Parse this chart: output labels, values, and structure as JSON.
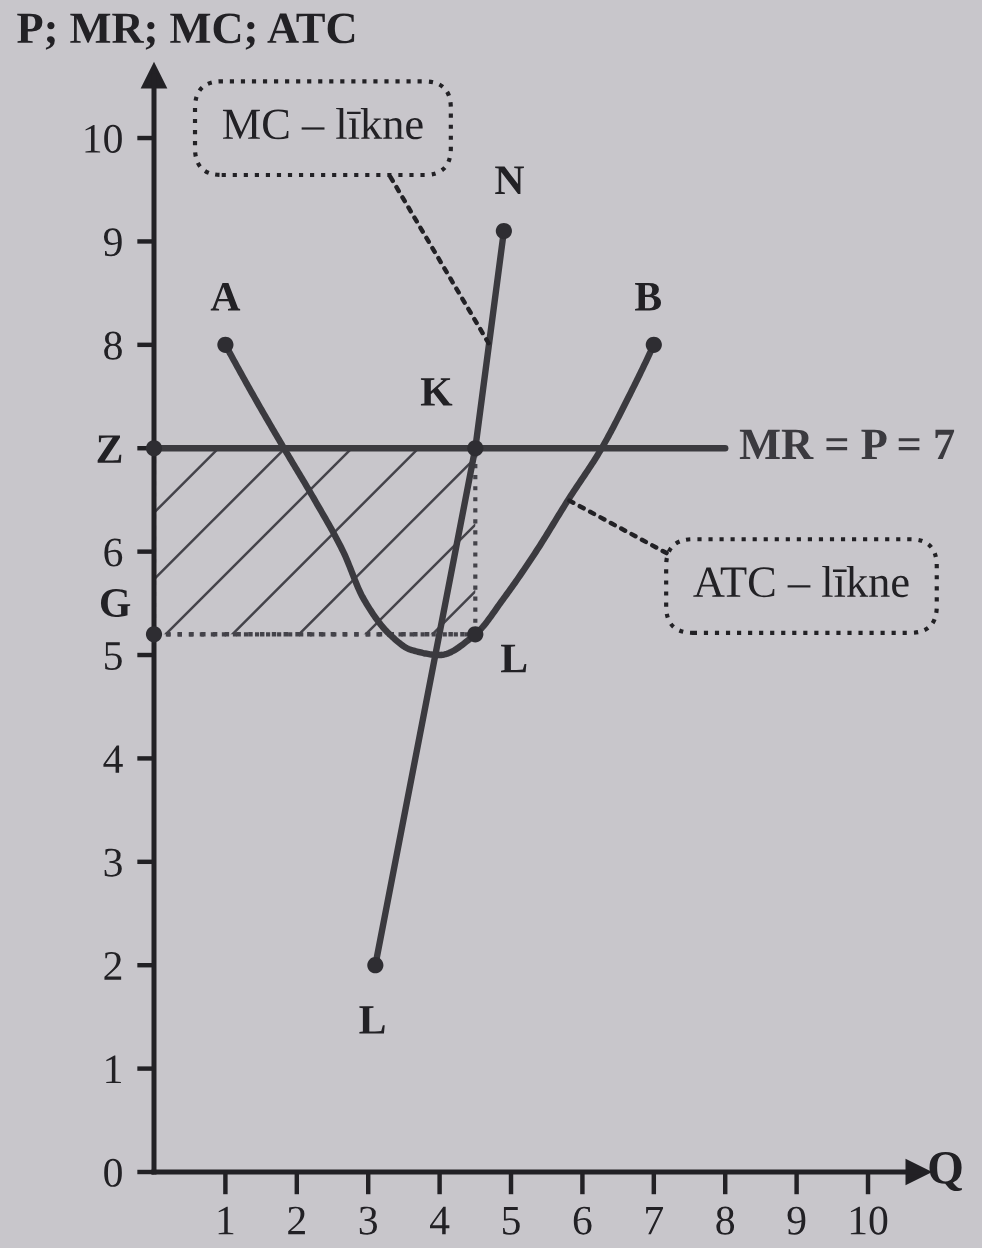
{
  "chart_data": {
    "type": "line",
    "xlabel": "Q",
    "ylabel": "P; MR; MC; ATC",
    "xlim": [
      0,
      10.7
    ],
    "ylim": [
      0,
      10.6
    ],
    "xticks": [
      1,
      2,
      3,
      4,
      5,
      6,
      7,
      8,
      9,
      10
    ],
    "yticks": [
      0,
      1,
      2,
      3,
      4,
      5,
      6,
      {
        "value": 7,
        "label": "Z"
      },
      8,
      9,
      10
    ],
    "grid": false,
    "series": [
      {
        "x": [
          0,
          4.5
        ],
        "values": [
          5.2,
          5.2
        ],
        "lower": [
          5.2,
          5.2
        ],
        "upper": [
          7,
          7
        ],
        "color": "#44434a",
        "line_style": "dotted"
      },
      {
        "x": [
          1,
          1.4,
          1.82,
          2.25,
          2.65,
          2.93,
          3.3,
          3.6,
          4,
          4.5,
          4.9,
          5.35,
          5.8,
          6.27,
          6.65,
          7
        ],
        "values": [
          8,
          7.5,
          7,
          6.5,
          6,
          5.55,
          5.2,
          5.05,
          5,
          5.2,
          5.55,
          6,
          6.5,
          7,
          7.5,
          8
        ],
        "color": "#3b3a3f"
      },
      {
        "x": [
          3.1,
          4.5,
          4.9
        ],
        "values": [
          2,
          7,
          9.1
        ],
        "color": "#3b3a3f"
      },
      {
        "name": "MR = P = 7",
        "x": [
          0,
          8
        ],
        "values": [
          7,
          7
        ],
        "color": "#3b3a3f"
      },
      {
        "type": "scatter",
        "x": [
          1,
          4.9,
          7,
          4.5,
          4.5,
          3.1,
          0,
          0
        ],
        "values": [
          8,
          9.1,
          8,
          7,
          5.2,
          2,
          7,
          5.2
        ],
        "color": "#2e2d32",
        "marker": "circle"
      }
    ],
    "annotations": [
      {
        "text": "A",
        "x": 1,
        "y": 8
      },
      {
        "text": "N",
        "x": 4.9,
        "y": 9.1
      },
      {
        "text": "B",
        "x": 7,
        "y": 8
      },
      {
        "text": "K",
        "x": 4.5,
        "y": 7
      },
      {
        "text": "L",
        "x": 4.5,
        "y": 5.2
      },
      {
        "text": "L",
        "x": 3.1,
        "y": 2
      },
      {
        "text": "G",
        "x": 0,
        "y": 5.2
      },
      {
        "text": "MC – līkne",
        "x": 4.7,
        "y": 8
      },
      {
        "text": "ATC – līkne",
        "x": 5.8,
        "y": 6.5
      }
    ]
  }
}
